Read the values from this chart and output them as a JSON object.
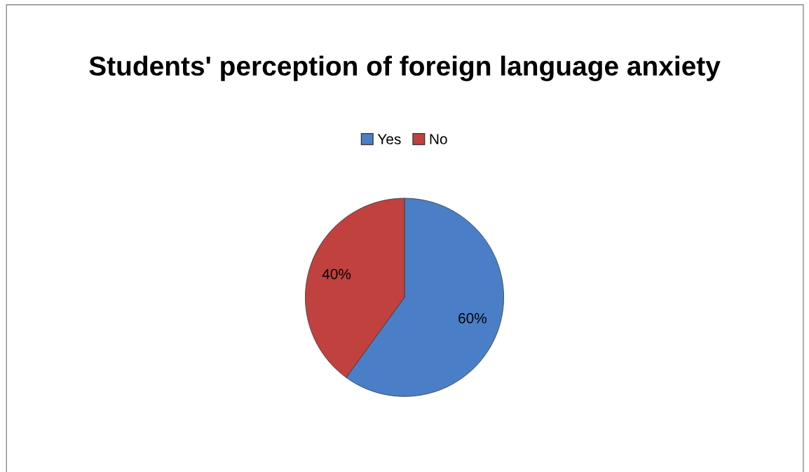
{
  "chart_data": {
    "type": "pie",
    "title": "Students' perception of foreign language anxiety",
    "categories": [
      "Yes",
      "No"
    ],
    "values": [
      60,
      40
    ],
    "colors": [
      "#4a7fc8",
      "#c0413e"
    ],
    "value_labels": [
      "60%",
      "40%"
    ],
    "legend": "top"
  }
}
